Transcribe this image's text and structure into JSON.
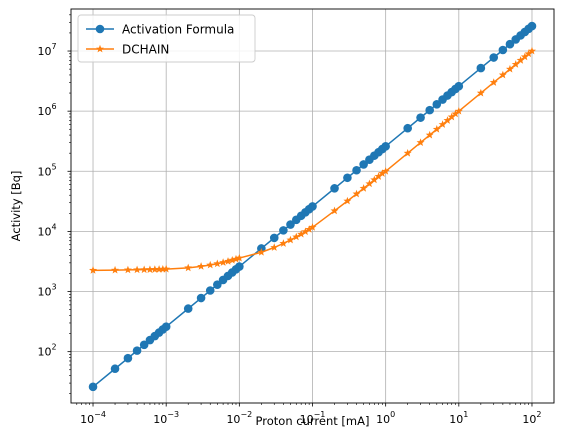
{
  "chart_data": {
    "type": "line",
    "title": "",
    "xlabel": "Proton current [mA]",
    "ylabel": "Activity [Bq]",
    "x_scale": "log",
    "y_scale": "log",
    "xlim": [
      5e-05,
      200
    ],
    "ylim": [
      14,
      50000000
    ],
    "grid": true,
    "legend_position": "top-left",
    "x_ticks": [
      {
        "base": "10",
        "exp": "−4",
        "value": 0.0001
      },
      {
        "base": "10",
        "exp": "−3",
        "value": 0.001
      },
      {
        "base": "10",
        "exp": "−2",
        "value": 0.01
      },
      {
        "base": "10",
        "exp": "−1",
        "value": 0.1
      },
      {
        "base": "10",
        "exp": "0",
        "value": 1
      },
      {
        "base": "10",
        "exp": "1",
        "value": 10
      },
      {
        "base": "10",
        "exp": "2",
        "value": 100
      }
    ],
    "y_ticks": [
      {
        "base": "10",
        "exp": "2",
        "value": 100
      },
      {
        "base": "10",
        "exp": "3",
        "value": 1000
      },
      {
        "base": "10",
        "exp": "4",
        "value": 10000
      },
      {
        "base": "10",
        "exp": "5",
        "value": 100000
      },
      {
        "base": "10",
        "exp": "6",
        "value": 1000000
      },
      {
        "base": "10",
        "exp": "7",
        "value": 10000000
      }
    ],
    "x": [
      0.0001,
      0.0002,
      0.0003,
      0.0004,
      0.0005,
      0.0006,
      0.0007,
      0.0008,
      0.0009,
      0.001,
      0.002,
      0.003,
      0.004,
      0.005,
      0.006,
      0.007,
      0.008,
      0.009,
      0.01,
      0.02,
      0.03,
      0.04,
      0.05,
      0.06,
      0.07,
      0.08,
      0.09,
      0.1,
      0.2,
      0.3,
      0.4,
      0.5,
      0.6,
      0.7,
      0.8,
      0.9,
      1,
      2,
      3,
      4,
      5,
      6,
      7,
      8,
      9,
      10,
      20,
      30,
      40,
      50,
      60,
      70,
      80,
      90,
      100
    ],
    "series": [
      {
        "name": "Activation Formula",
        "color": "#1f77b4",
        "marker": "circle",
        "values": [
          26,
          52,
          78,
          104,
          130,
          156,
          182,
          208,
          234,
          260,
          520,
          780,
          1040,
          1300,
          1560,
          1820,
          2080,
          2340,
          2600,
          5200,
          7800,
          10400,
          13000,
          15600,
          18200,
          20800,
          23400,
          26000,
          52000,
          78000,
          104000,
          130000,
          156000,
          182000,
          208000,
          234000,
          260000,
          520000,
          780000,
          1040000,
          1300000,
          1560000,
          1820000,
          2080000,
          2340000,
          2600000,
          5200000,
          7800000,
          10400000,
          13000000,
          15600000,
          18200000,
          20800000,
          23400000,
          26000000
        ]
      },
      {
        "name": "DCHAIN",
        "color": "#ff7f0e",
        "marker": "star",
        "values": [
          2250,
          2270,
          2290,
          2300,
          2310,
          2320,
          2330,
          2340,
          2350,
          2360,
          2480,
          2620,
          2760,
          2900,
          3040,
          3180,
          3320,
          3460,
          3600,
          4500,
          5400,
          6300,
          7200,
          8100,
          9000,
          9900,
          10800,
          11700,
          22000,
          32000,
          42000,
          52000,
          62000,
          72000,
          82000,
          92000,
          100000,
          200000,
          300000,
          400000,
          500000,
          600000,
          700000,
          800000,
          900000,
          1000000,
          2000000,
          3000000,
          4000000,
          5000000,
          6000000,
          7000000,
          8000000,
          9000000,
          10000000
        ]
      }
    ]
  }
}
